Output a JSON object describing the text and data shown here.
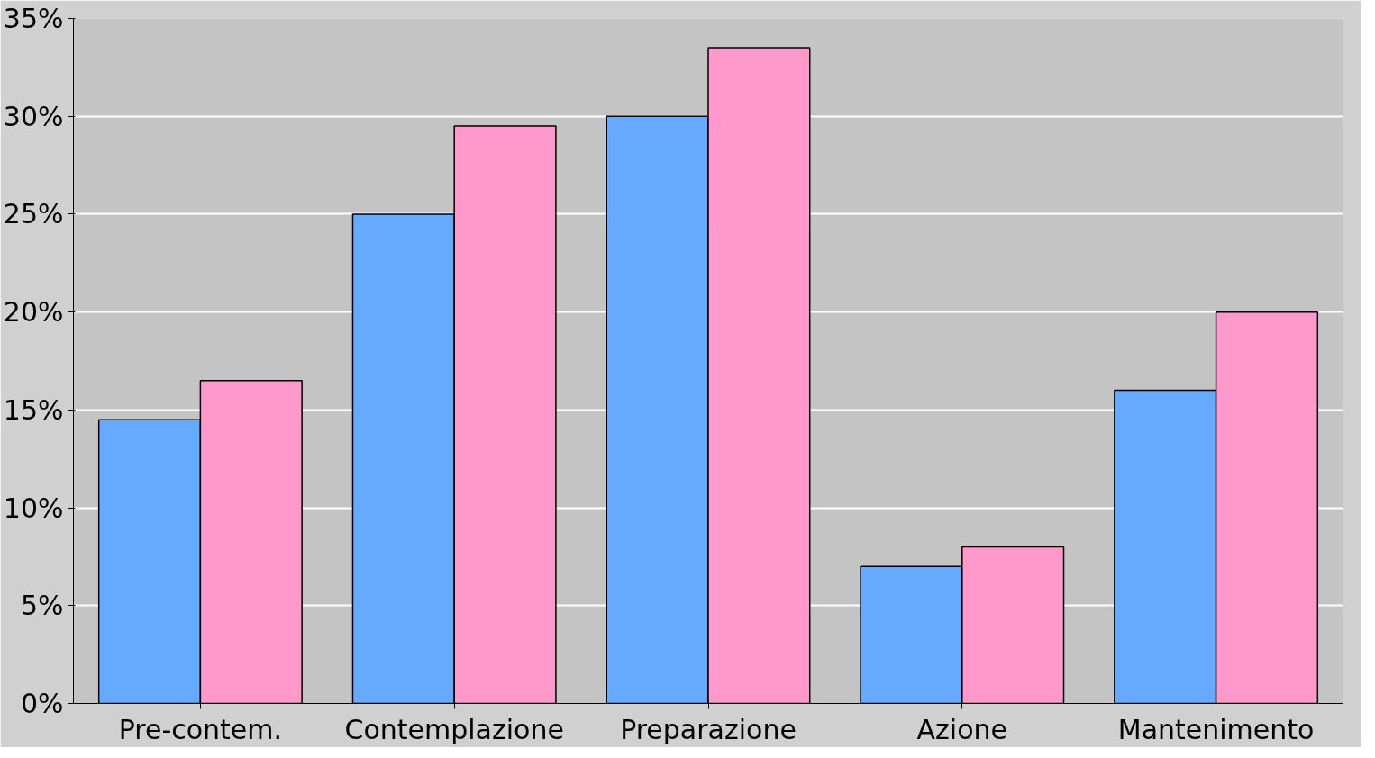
{
  "chart_data": {
    "type": "bar",
    "categories": [
      "Pre-contem.",
      "Contemplazione",
      "Preparazione",
      "Azione",
      "Mantenimento"
    ],
    "series": [
      {
        "color": "#66aaff",
        "values": [
          14.5,
          25,
          30,
          7,
          16
        ]
      },
      {
        "color": "#ff99cc",
        "values": [
          16.5,
          29.5,
          33.5,
          8,
          20
        ]
      }
    ],
    "ylim": [
      0,
      35
    ],
    "yticks": [
      {
        "value": 0,
        "label": "0%"
      },
      {
        "value": 5,
        "label": "5%"
      },
      {
        "value": 10,
        "label": "10%"
      },
      {
        "value": 15,
        "label": "15%"
      },
      {
        "value": 20,
        "label": "20%"
      },
      {
        "value": 25,
        "label": "25%"
      },
      {
        "value": 30,
        "label": "30%"
      },
      {
        "value": 35,
        "label": "35%"
      }
    ],
    "grid": "y"
  }
}
